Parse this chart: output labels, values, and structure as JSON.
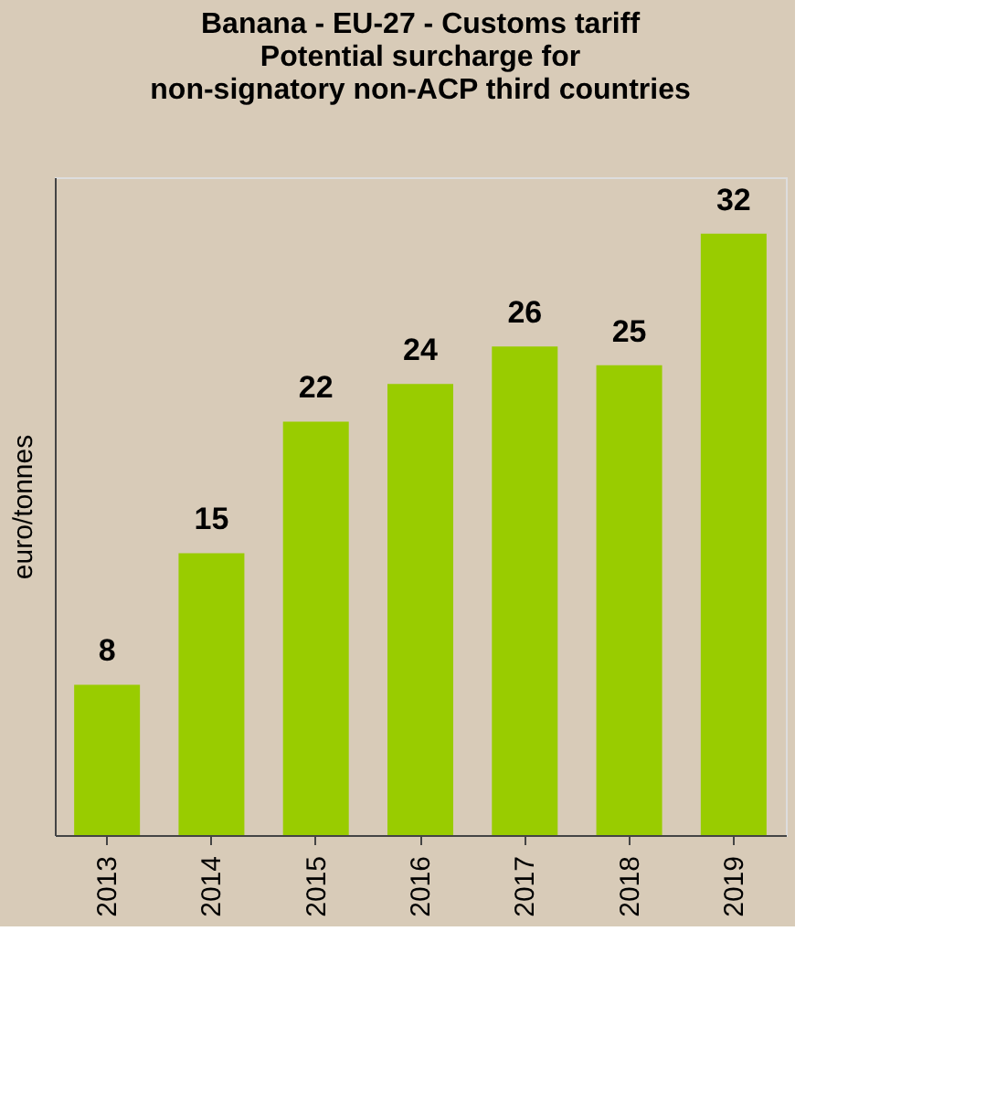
{
  "chart_data": {
    "type": "bar",
    "title": [
      "Banana - EU-27 - Customs tariff",
      "Potential surcharge for",
      "non-signatory non-ACP third countries"
    ],
    "ylabel": "euro/tonnes",
    "categories": [
      "2013",
      "2014",
      "2015",
      "2016",
      "2017",
      "2018",
      "2019"
    ],
    "values": [
      8,
      15,
      22,
      24,
      26,
      25,
      32
    ],
    "color": "#99cc00",
    "data_labels": true,
    "grid": false
  }
}
